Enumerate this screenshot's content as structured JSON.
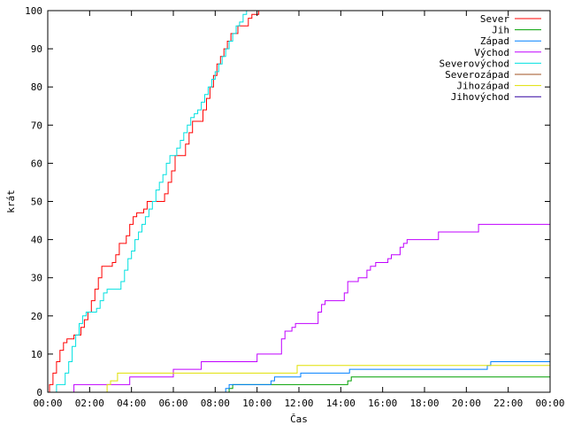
{
  "chart_data": {
    "type": "line",
    "title": "",
    "xlabel": "Čas",
    "ylabel": "krát",
    "x_range": [
      "00:00",
      "24:00"
    ],
    "ylim": [
      0,
      100
    ],
    "x_ticks": [
      "00:00",
      "02:00",
      "04:00",
      "06:00",
      "08:00",
      "10:00",
      "12:00",
      "14:00",
      "16:00",
      "18:00",
      "20:00",
      "22:00",
      "00:00"
    ],
    "y_ticks": [
      0,
      10,
      20,
      30,
      40,
      50,
      60,
      70,
      80,
      90,
      100
    ],
    "grid": false,
    "legend_position": "top-right",
    "line_style": "step",
    "series": [
      {
        "name": "Sever",
        "color": "#ff0000",
        "points": [
          [
            "00:00",
            0
          ],
          [
            "00:05",
            2
          ],
          [
            "00:15",
            5
          ],
          [
            "00:25",
            8
          ],
          [
            "00:35",
            11
          ],
          [
            "00:45",
            13
          ],
          [
            "00:55",
            14
          ],
          [
            "01:15",
            15
          ],
          [
            "01:35",
            17
          ],
          [
            "01:45",
            19
          ],
          [
            "01:55",
            21
          ],
          [
            "02:05",
            24
          ],
          [
            "02:15",
            27
          ],
          [
            "02:25",
            30
          ],
          [
            "02:35",
            33
          ],
          [
            "03:05",
            34
          ],
          [
            "03:15",
            36
          ],
          [
            "03:25",
            39
          ],
          [
            "03:45",
            41
          ],
          [
            "03:55",
            44
          ],
          [
            "04:05",
            46
          ],
          [
            "04:15",
            47
          ],
          [
            "04:35",
            48
          ],
          [
            "04:45",
            50
          ],
          [
            "05:35",
            52
          ],
          [
            "05:45",
            55
          ],
          [
            "05:55",
            58
          ],
          [
            "06:05",
            62
          ],
          [
            "06:35",
            65
          ],
          [
            "06:45",
            68
          ],
          [
            "06:55",
            71
          ],
          [
            "07:25",
            74
          ],
          [
            "07:35",
            77
          ],
          [
            "07:45",
            80
          ],
          [
            "07:55",
            83
          ],
          [
            "08:05",
            86
          ],
          [
            "08:15",
            88
          ],
          [
            "08:25",
            90
          ],
          [
            "08:35",
            92
          ],
          [
            "08:45",
            94
          ],
          [
            "09:05",
            96
          ],
          [
            "09:35",
            98
          ],
          [
            "09:45",
            99
          ],
          [
            "10:05",
            100
          ],
          [
            "10:30",
            100
          ]
        ]
      },
      {
        "name": "Jih",
        "color": "#00a000",
        "points": [
          [
            "00:00",
            0
          ],
          [
            "08:40",
            1
          ],
          [
            "08:50",
            2
          ],
          [
            "14:20",
            3
          ],
          [
            "14:30",
            4
          ],
          [
            "24:00",
            4
          ]
        ]
      },
      {
        "name": "Západ",
        "color": "#0080ff",
        "points": [
          [
            "00:00",
            0
          ],
          [
            "08:30",
            1
          ],
          [
            "08:40",
            2
          ],
          [
            "10:40",
            3
          ],
          [
            "10:50",
            4
          ],
          [
            "12:05",
            5
          ],
          [
            "14:25",
            6
          ],
          [
            "21:00",
            7
          ],
          [
            "21:10",
            8
          ],
          [
            "24:00",
            8
          ]
        ]
      },
      {
        "name": "Východ",
        "color": "#c000ff",
        "points": [
          [
            "00:00",
            0
          ],
          [
            "01:15",
            2
          ],
          [
            "03:55",
            4
          ],
          [
            "06:00",
            6
          ],
          [
            "07:20",
            8
          ],
          [
            "10:00",
            10
          ],
          [
            "11:10",
            14
          ],
          [
            "11:20",
            16
          ],
          [
            "11:40",
            17
          ],
          [
            "11:50",
            18
          ],
          [
            "12:55",
            21
          ],
          [
            "13:05",
            23
          ],
          [
            "13:15",
            24
          ],
          [
            "14:10",
            26
          ],
          [
            "14:20",
            29
          ],
          [
            "14:50",
            30
          ],
          [
            "15:15",
            32
          ],
          [
            "15:25",
            33
          ],
          [
            "15:40",
            34
          ],
          [
            "16:15",
            35
          ],
          [
            "16:25",
            36
          ],
          [
            "16:50",
            38
          ],
          [
            "17:00",
            39
          ],
          [
            "17:10",
            40
          ],
          [
            "18:40",
            42
          ],
          [
            "20:35",
            44
          ],
          [
            "24:00",
            44
          ]
        ]
      },
      {
        "name": "Severovýchod",
        "color": "#00e0e0",
        "points": [
          [
            "00:00",
            0
          ],
          [
            "00:25",
            2
          ],
          [
            "00:50",
            5
          ],
          [
            "01:00",
            8
          ],
          [
            "01:10",
            12
          ],
          [
            "01:20",
            15
          ],
          [
            "01:30",
            18
          ],
          [
            "01:40",
            20
          ],
          [
            "01:50",
            21
          ],
          [
            "02:20",
            22
          ],
          [
            "02:30",
            24
          ],
          [
            "02:40",
            26
          ],
          [
            "02:50",
            27
          ],
          [
            "03:30",
            29
          ],
          [
            "03:40",
            32
          ],
          [
            "03:50",
            35
          ],
          [
            "04:00",
            37
          ],
          [
            "04:10",
            40
          ],
          [
            "04:20",
            42
          ],
          [
            "04:30",
            44
          ],
          [
            "04:40",
            46
          ],
          [
            "04:50",
            48
          ],
          [
            "05:00",
            50
          ],
          [
            "05:10",
            53
          ],
          [
            "05:20",
            55
          ],
          [
            "05:30",
            57
          ],
          [
            "05:40",
            60
          ],
          [
            "05:50",
            62
          ],
          [
            "06:10",
            64
          ],
          [
            "06:20",
            66
          ],
          [
            "06:30",
            68
          ],
          [
            "06:40",
            70
          ],
          [
            "06:50",
            72
          ],
          [
            "07:00",
            73
          ],
          [
            "07:10",
            74
          ],
          [
            "07:20",
            76
          ],
          [
            "07:30",
            78
          ],
          [
            "07:40",
            80
          ],
          [
            "07:50",
            82
          ],
          [
            "08:00",
            84
          ],
          [
            "08:10",
            86
          ],
          [
            "08:20",
            88
          ],
          [
            "08:30",
            90
          ],
          [
            "08:40",
            92
          ],
          [
            "08:50",
            94
          ],
          [
            "09:00",
            96
          ],
          [
            "09:10",
            97
          ],
          [
            "09:20",
            99
          ],
          [
            "09:30",
            100
          ],
          [
            "09:40",
            100
          ]
        ]
      },
      {
        "name": "Severozápad",
        "color": "#a05020",
        "points": []
      },
      {
        "name": "Jihozápad",
        "color": "#e0e000",
        "points": [
          [
            "00:00",
            0
          ],
          [
            "02:50",
            2
          ],
          [
            "03:00",
            3
          ],
          [
            "03:20",
            5
          ],
          [
            "11:55",
            7
          ],
          [
            "24:00",
            7
          ]
        ]
      },
      {
        "name": "Jihovýchod",
        "color": "#3000a0",
        "points": []
      }
    ]
  }
}
